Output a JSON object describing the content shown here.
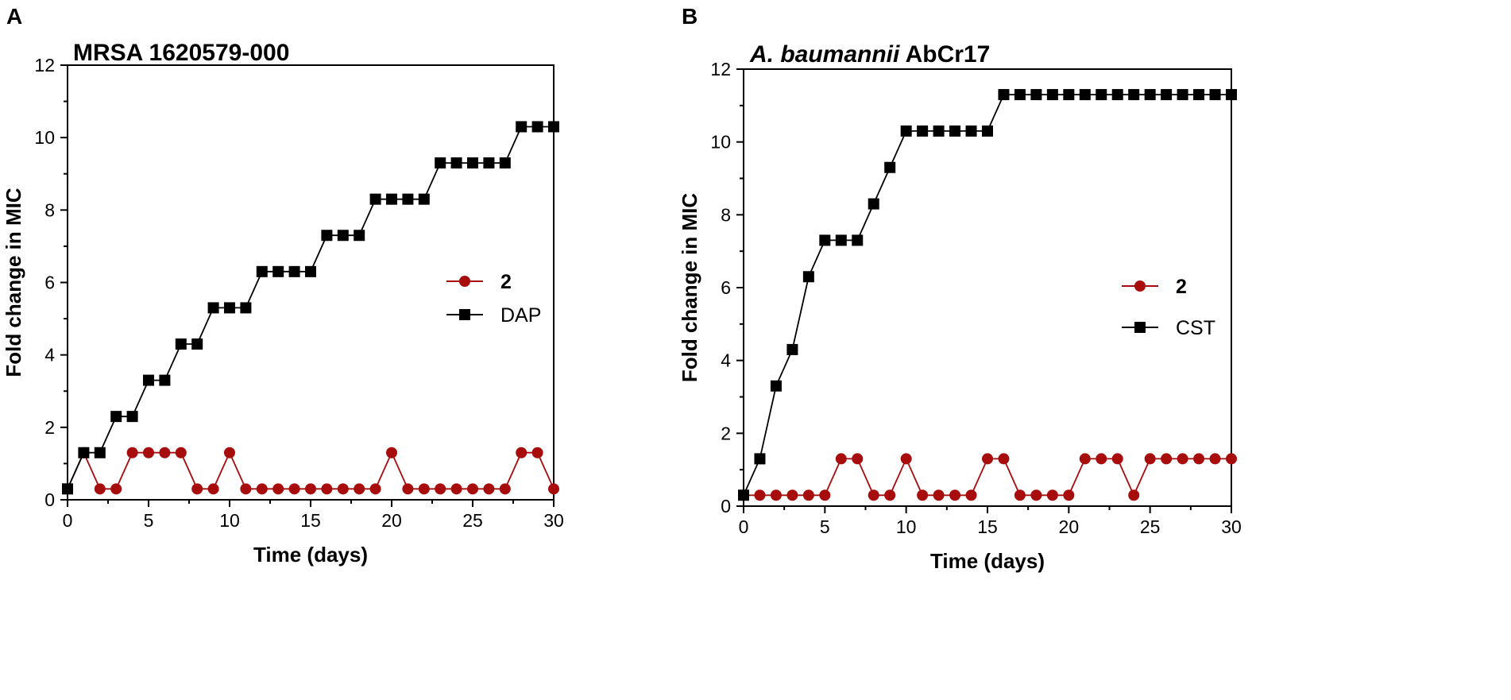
{
  "colors": {
    "red": "#a80d0d",
    "black": "#000000"
  },
  "chart_data": [
    {
      "type": "line",
      "panel_letter": "A",
      "title": "MRSA 1620579-000",
      "title_parts": [
        {
          "text": "MRSA 1620579-000",
          "italic": false
        }
      ],
      "xlabel": "Time (days)",
      "ylabel": "Fold change in MIC",
      "xlim": [
        0,
        30
      ],
      "ylim": [
        0,
        12
      ],
      "x_ticks": [
        0,
        5,
        10,
        15,
        20,
        25,
        30
      ],
      "y_ticks": [
        0,
        2,
        4,
        6,
        8,
        10,
        12
      ],
      "grid": false,
      "legend_position": "center-right",
      "x": [
        0,
        1,
        2,
        3,
        4,
        5,
        6,
        7,
        8,
        9,
        10,
        11,
        12,
        13,
        14,
        15,
        16,
        17,
        18,
        19,
        20,
        21,
        22,
        23,
        24,
        25,
        26,
        27,
        28,
        29,
        30
      ],
      "series": [
        {
          "name": "2",
          "color": "#a80d0d",
          "marker": "circle",
          "values": [
            0.3,
            1.3,
            0.3,
            0.3,
            1.3,
            1.3,
            1.3,
            1.3,
            0.3,
            0.3,
            1.3,
            0.3,
            0.3,
            0.3,
            0.3,
            0.3,
            0.3,
            0.3,
            0.3,
            0.3,
            1.3,
            0.3,
            0.3,
            0.3,
            0.3,
            0.3,
            0.3,
            0.3,
            1.3,
            1.3,
            0.3
          ]
        },
        {
          "name": "DAP",
          "color": "#000000",
          "marker": "square",
          "values": [
            0.3,
            1.3,
            1.3,
            2.3,
            2.3,
            3.3,
            3.3,
            4.3,
            4.3,
            5.3,
            5.3,
            5.3,
            6.3,
            6.3,
            6.3,
            6.3,
            7.3,
            7.3,
            7.3,
            8.3,
            8.3,
            8.3,
            8.3,
            9.3,
            9.3,
            9.3,
            9.3,
            9.3,
            10.3,
            10.3,
            10.3
          ]
        }
      ]
    },
    {
      "type": "line",
      "panel_letter": "B",
      "title": "A. baumannii AbCr17",
      "title_parts": [
        {
          "text": "A. baumannii",
          "italic": true
        },
        {
          "text": " AbCr17",
          "italic": false
        }
      ],
      "xlabel": "Time (days)",
      "ylabel": "Fold change in MIC",
      "xlim": [
        0,
        30
      ],
      "ylim": [
        0,
        12
      ],
      "x_ticks": [
        0,
        5,
        10,
        15,
        20,
        25,
        30
      ],
      "y_ticks": [
        0,
        2,
        4,
        6,
        8,
        10,
        12
      ],
      "grid": false,
      "legend_position": "center-right",
      "x": [
        0,
        1,
        2,
        3,
        4,
        5,
        6,
        7,
        8,
        9,
        10,
        11,
        12,
        13,
        14,
        15,
        16,
        17,
        18,
        19,
        20,
        21,
        22,
        23,
        24,
        25,
        26,
        27,
        28,
        29,
        30
      ],
      "series": [
        {
          "name": "2",
          "color": "#a80d0d",
          "marker": "circle",
          "values": [
            0.3,
            0.3,
            0.3,
            0.3,
            0.3,
            0.3,
            1.3,
            1.3,
            0.3,
            0.3,
            1.3,
            0.3,
            0.3,
            0.3,
            0.3,
            1.3,
            1.3,
            0.3,
            0.3,
            0.3,
            0.3,
            1.3,
            1.3,
            1.3,
            0.3,
            1.3,
            1.3,
            1.3,
            1.3,
            1.3,
            1.3
          ]
        },
        {
          "name": "CST",
          "color": "#000000",
          "marker": "square",
          "values": [
            0.3,
            1.3,
            3.3,
            4.3,
            6.3,
            7.3,
            7.3,
            7.3,
            8.3,
            9.3,
            10.3,
            10.3,
            10.3,
            10.3,
            10.3,
            10.3,
            11.3,
            11.3,
            11.3,
            11.3,
            11.3,
            11.3,
            11.3,
            11.3,
            11.3,
            11.3,
            11.3,
            11.3,
            11.3,
            11.3,
            11.3
          ]
        }
      ]
    }
  ]
}
